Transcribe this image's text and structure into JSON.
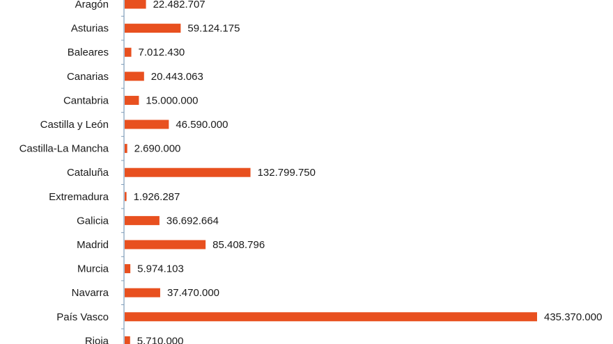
{
  "chart_data": {
    "type": "bar",
    "orientation": "horizontal",
    "categories": [
      "Aragón",
      "Asturias",
      "Baleares",
      "Canarias",
      "Cantabria",
      "Castilla y León",
      "Castilla-La Mancha",
      "Cataluña",
      "Extremadura",
      "Galicia",
      "Madrid",
      "Murcia",
      "Navarra",
      "País Vasco",
      "Rioja"
    ],
    "values": [
      22482707,
      59124175,
      7012430,
      20443063,
      15000000,
      46590000,
      2690000,
      132799750,
      1926287,
      36692664,
      85408796,
      5974103,
      37470000,
      435370000,
      5710000
    ],
    "value_labels": [
      "22.482.707",
      "59.124.175",
      "7.012.430",
      "20.443.063",
      "15.000.000",
      "46.590.000",
      "2.690.000",
      "132.799.750",
      "1.926.287",
      "36.692.664",
      "85.408.796",
      "5.974.103",
      "37.470.000",
      "435.370.000",
      "5.710.000"
    ],
    "title": "",
    "xlabel": "",
    "ylabel": "",
    "xlim": [
      0,
      435370000
    ],
    "grid": false,
    "legend": "none",
    "bar_color": "#e8501f",
    "axis_color": "#7f9db9"
  }
}
